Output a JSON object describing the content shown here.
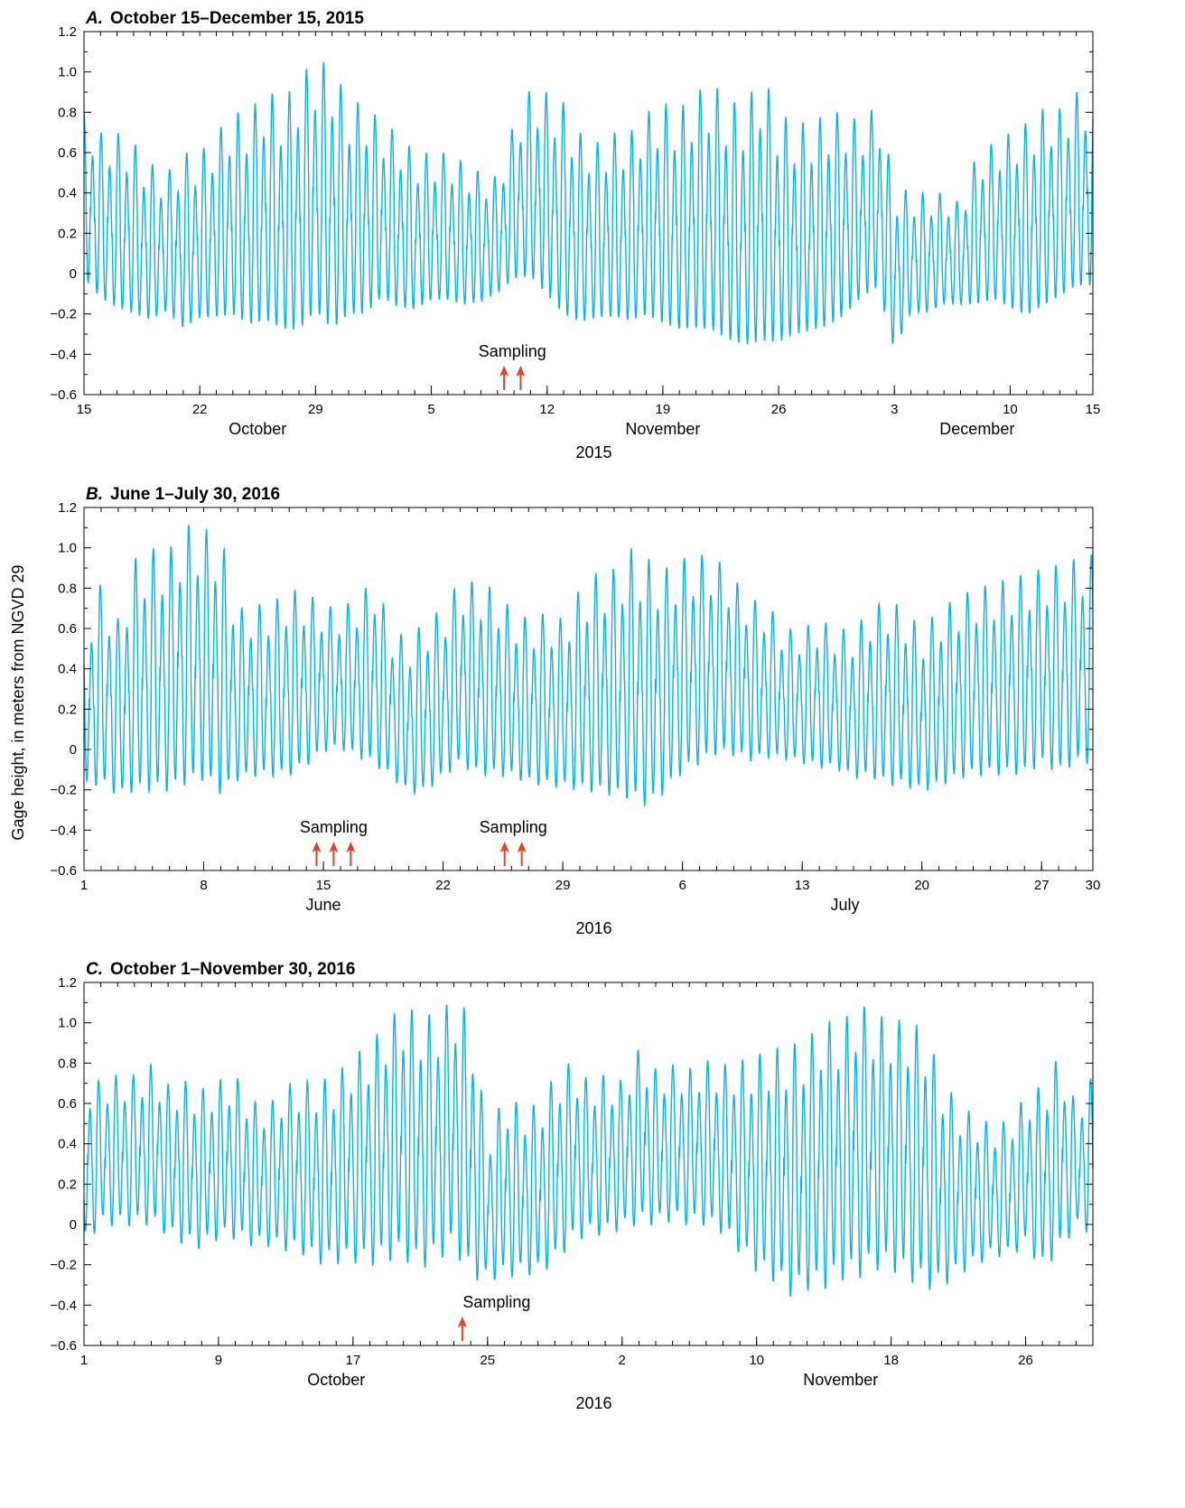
{
  "colors": {
    "series": "#00b4e6",
    "arrow": "#ee3a24",
    "axis": "#000000"
  },
  "ylabel": "Gage height, in meters from NGVD 29",
  "chart_data": [
    {
      "type": "line",
      "panel_letter": "A.",
      "title": "October 15–December 15, 2015",
      "ylim": [
        -0.6,
        1.2
      ],
      "yticks": [
        -0.6,
        -0.4,
        -0.2,
        0,
        0.2,
        0.4,
        0.6,
        0.8,
        1.0,
        1.2
      ],
      "ytick_labels": [
        "−0.6",
        "−0.4",
        "−0.2",
        "0",
        "0.2",
        "0.4",
        "0.6",
        "0.8",
        "1.0",
        "1.2"
      ],
      "xlim_days": [
        0,
        61
      ],
      "xticks": [
        {
          "day": 0,
          "label": "15"
        },
        {
          "day": 7,
          "label": "22"
        },
        {
          "day": 14,
          "label": "29"
        },
        {
          "day": 21,
          "label": "5"
        },
        {
          "day": 28,
          "label": "12"
        },
        {
          "day": 35,
          "label": "19"
        },
        {
          "day": 42,
          "label": "26"
        },
        {
          "day": 49,
          "label": "3"
        },
        {
          "day": 56,
          "label": "10"
        },
        {
          "day": 61,
          "label": "15"
        }
      ],
      "months": [
        {
          "label": "October",
          "day": 10.5
        },
        {
          "label": "November",
          "day": 35
        },
        {
          "label": "December",
          "day": 54
        }
      ],
      "year": "2015",
      "sampling_label": "Sampling",
      "sampling_days": [
        25.4,
        26.4
      ],
      "daily_high": [
        0.8,
        0.7,
        0.7,
        0.65,
        0.55,
        0.5,
        0.6,
        0.6,
        0.7,
        0.8,
        0.8,
        0.92,
        0.85,
        0.98,
        1.06,
        1.04,
        0.85,
        0.85,
        0.75,
        0.7,
        0.6,
        0.6,
        0.6,
        0.55,
        0.5,
        0.48,
        0.75,
        0.92,
        0.9,
        0.85,
        0.7,
        0.65,
        0.7,
        0.7,
        0.8,
        0.85,
        0.82,
        0.9,
        0.95,
        0.85,
        0.85,
        1.0,
        0.8,
        0.75,
        0.75,
        0.8,
        0.8,
        0.75,
        0.85,
        0.45,
        0.4,
        0.4,
        0.4,
        0.35,
        0.6,
        0.65,
        0.7,
        0.75,
        0.82,
        0.82,
        0.9
      ],
      "daily_low": [
        -0.1,
        -0.2,
        -0.25,
        -0.28,
        -0.3,
        -0.25,
        -0.35,
        -0.3,
        -0.3,
        -0.3,
        -0.35,
        -0.34,
        -0.38,
        -0.4,
        -0.3,
        -0.4,
        -0.3,
        -0.3,
        -0.2,
        -0.25,
        -0.25,
        -0.2,
        -0.2,
        -0.22,
        -0.2,
        -0.15,
        -0.1,
        -0.1,
        -0.2,
        -0.3,
        -0.33,
        -0.3,
        -0.3,
        -0.32,
        -0.3,
        -0.35,
        -0.38,
        -0.38,
        -0.4,
        -0.44,
        -0.47,
        -0.46,
        -0.45,
        -0.4,
        -0.38,
        -0.36,
        -0.3,
        -0.2,
        -0.15,
        -0.46,
        -0.25,
        -0.25,
        -0.2,
        -0.2,
        -0.22,
        -0.2,
        -0.25,
        -0.3,
        -0.25,
        -0.2,
        -0.15
      ]
    },
    {
      "type": "line",
      "panel_letter": "B.",
      "title": "June 1–July 30, 2016",
      "ylim": [
        -0.6,
        1.2
      ],
      "yticks": [
        -0.6,
        -0.4,
        -0.2,
        0,
        0.2,
        0.4,
        0.6,
        0.8,
        1.0,
        1.2
      ],
      "ytick_labels": [
        "−0.6",
        "−0.4",
        "−0.2",
        "0",
        "0.2",
        "0.4",
        "0.6",
        "0.8",
        "1.0",
        "1.2"
      ],
      "xlim_days": [
        0,
        59
      ],
      "xticks": [
        {
          "day": 0,
          "label": "1"
        },
        {
          "day": 7,
          "label": "8"
        },
        {
          "day": 14,
          "label": "15"
        },
        {
          "day": 21,
          "label": "22"
        },
        {
          "day": 28,
          "label": "29"
        },
        {
          "day": 35,
          "label": "6"
        },
        {
          "day": 42,
          "label": "13"
        },
        {
          "day": 49,
          "label": "20"
        },
        {
          "day": 56,
          "label": "27"
        },
        {
          "day": 59,
          "label": "30"
        }
      ],
      "months": [
        {
          "label": "June",
          "day": 14
        },
        {
          "label": "July",
          "day": 44.5
        }
      ],
      "year": "2016",
      "sampling_label": "Sampling",
      "sampling_groups": [
        [
          13.6,
          14.6,
          15.6
        ],
        [
          24.6,
          25.6
        ]
      ],
      "daily_high": [
        0.6,
        0.83,
        0.65,
        0.95,
        1.0,
        1.0,
        1.12,
        1.1,
        1.07,
        0.7,
        0.72,
        0.73,
        0.8,
        0.78,
        0.72,
        0.7,
        0.76,
        0.85,
        0.6,
        0.55,
        0.65,
        0.7,
        0.85,
        0.83,
        0.8,
        0.7,
        0.65,
        0.68,
        0.65,
        0.8,
        0.88,
        0.9,
        1.0,
        0.95,
        0.9,
        0.95,
        0.97,
        0.95,
        0.85,
        0.75,
        0.72,
        0.6,
        0.6,
        0.65,
        0.6,
        0.6,
        0.7,
        0.75,
        0.7,
        0.6,
        0.7,
        0.75,
        0.8,
        0.82,
        0.85,
        0.87,
        0.9,
        0.92,
        0.95,
        0.97
      ],
      "daily_low": [
        -0.25,
        -0.25,
        -0.3,
        -0.3,
        -0.3,
        -0.3,
        -0.27,
        -0.25,
        -0.32,
        -0.22,
        -0.2,
        -0.2,
        -0.2,
        -0.15,
        -0.07,
        -0.05,
        -0.1,
        -0.15,
        -0.2,
        -0.28,
        -0.28,
        -0.2,
        -0.15,
        -0.2,
        -0.2,
        -0.2,
        -0.23,
        -0.25,
        -0.25,
        -0.28,
        -0.3,
        -0.32,
        -0.34,
        -0.38,
        -0.3,
        -0.2,
        -0.15,
        -0.1,
        -0.1,
        -0.12,
        -0.1,
        -0.1,
        -0.12,
        -0.15,
        -0.15,
        -0.2,
        -0.2,
        -0.25,
        -0.25,
        -0.27,
        -0.25,
        -0.22,
        -0.2,
        -0.2,
        -0.2,
        -0.2,
        -0.15,
        -0.2,
        -0.15,
        -0.15
      ]
    },
    {
      "type": "line",
      "panel_letter": "C.",
      "title": "October 1–November 30, 2016",
      "ylim": [
        -0.6,
        1.2
      ],
      "yticks": [
        -0.6,
        -0.4,
        -0.2,
        0,
        0.2,
        0.4,
        0.6,
        0.8,
        1.0,
        1.2
      ],
      "ytick_labels": [
        "−0.6",
        "−0.4",
        "−0.2",
        "0",
        "0.2",
        "0.4",
        "0.6",
        "0.8",
        "1.0",
        "1.2"
      ],
      "xlim_days": [
        0,
        60
      ],
      "xticks": [
        {
          "day": 0,
          "label": "1"
        },
        {
          "day": 8,
          "label": "9"
        },
        {
          "day": 16,
          "label": "17"
        },
        {
          "day": 24,
          "label": "25"
        },
        {
          "day": 32,
          "label": "2"
        },
        {
          "day": 40,
          "label": "10"
        },
        {
          "day": 48,
          "label": "18"
        },
        {
          "day": 56,
          "label": "26"
        }
      ],
      "months": [
        {
          "label": "October",
          "day": 15
        },
        {
          "label": "November",
          "day": 45
        }
      ],
      "year": "2016",
      "sampling_label": "Sampling",
      "sampling_days": [
        22.5
      ],
      "daily_high": [
        0.72,
        0.72,
        0.75,
        0.75,
        0.8,
        0.7,
        0.72,
        0.68,
        0.72,
        0.75,
        0.62,
        0.6,
        0.7,
        0.72,
        0.72,
        0.75,
        0.85,
        0.9,
        1.02,
        1.1,
        1.05,
        1.05,
        1.14,
        1.05,
        0.45,
        0.65,
        0.6,
        0.6,
        0.75,
        0.82,
        0.72,
        0.75,
        0.72,
        0.88,
        0.78,
        0.8,
        0.78,
        0.82,
        0.8,
        0.82,
        0.85,
        0.88,
        0.9,
        0.93,
        1.03,
        1.0,
        1.12,
        1.05,
        1.03,
        1.02,
        0.98,
        0.75,
        0.6,
        0.55,
        0.5,
        0.52,
        0.65,
        0.7,
        0.85,
        0.6,
        0.75
      ],
      "daily_low": [
        -0.15,
        -0.05,
        -0.05,
        -0.05,
        -0.05,
        -0.1,
        -0.15,
        -0.17,
        -0.12,
        -0.12,
        -0.15,
        -0.15,
        -0.18,
        -0.2,
        -0.25,
        -0.25,
        -0.25,
        -0.27,
        -0.25,
        -0.25,
        -0.3,
        -0.25,
        -0.2,
        -0.35,
        -0.32,
        -0.32,
        -0.3,
        -0.3,
        -0.25,
        -0.15,
        -0.1,
        -0.1,
        -0.07,
        -0.05,
        -0.05,
        -0.03,
        -0.05,
        -0.05,
        -0.1,
        -0.2,
        -0.3,
        -0.35,
        -0.43,
        -0.4,
        -0.4,
        -0.35,
        -0.35,
        -0.3,
        -0.3,
        -0.35,
        -0.4,
        -0.38,
        -0.3,
        -0.25,
        -0.2,
        -0.2,
        -0.15,
        -0.28,
        -0.2,
        -0.05,
        -0.1
      ]
    }
  ]
}
